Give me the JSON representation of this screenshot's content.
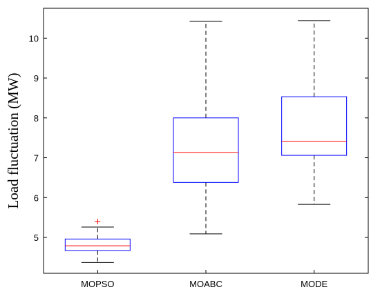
{
  "chart_data": {
    "type": "boxplot",
    "title": "",
    "xlabel": "",
    "ylabel": "Load fluctuation (MW)",
    "ylim": [
      4.1,
      10.75
    ],
    "yticks": [
      5,
      6,
      7,
      8,
      9,
      10
    ],
    "grid": false,
    "legend": "none",
    "categories": [
      "MOPSO",
      "MOABC",
      "MODE"
    ],
    "boxes": [
      {
        "category": "MOPSO",
        "whisker_low": 4.37,
        "q1": 4.67,
        "median": 4.79,
        "q3": 4.96,
        "whisker_high": 5.26,
        "outliers": [
          5.4
        ]
      },
      {
        "category": "MOABC",
        "whisker_low": 5.09,
        "q1": 6.38,
        "median": 7.13,
        "q3": 8.0,
        "whisker_high": 10.42,
        "outliers": []
      },
      {
        "category": "MODE",
        "whisker_low": 5.83,
        "q1": 7.06,
        "median": 7.41,
        "q3": 8.53,
        "whisker_high": 10.44,
        "outliers": []
      }
    ],
    "colors": {
      "box": "#0000ff",
      "median": "#ff0000",
      "whisker": "#000000",
      "outlier": "#ff0000",
      "axes": "#000000"
    }
  }
}
